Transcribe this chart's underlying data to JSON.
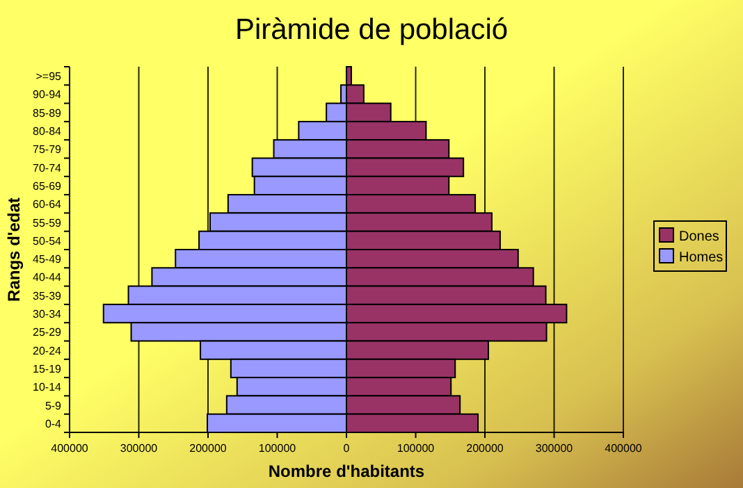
{
  "chart_data": {
    "type": "bar",
    "orientation": "horizontal",
    "title": "Piràmide de població",
    "xlabel": "Nombre d'habitants",
    "ylabel": "Rangs d'edat",
    "categories": [
      ">=95",
      "90-94",
      "85-89",
      "80-84",
      "75-79",
      "70-74",
      "65-69",
      "60-64",
      "55-59",
      "50-54",
      "45-49",
      "40-44",
      "35-39",
      "30-34",
      "25-29",
      "20-24",
      "15-19",
      "10-14",
      "5-9",
      "0-4"
    ],
    "series": [
      {
        "name": "Dones",
        "color": "#993366",
        "values": [
          7000,
          25000,
          64000,
          115000,
          148000,
          169000,
          148000,
          186000,
          210000,
          222000,
          248000,
          270000,
          288000,
          318000,
          289000,
          205000,
          157000,
          151000,
          164000,
          190000
        ]
      },
      {
        "name": "Homes",
        "color": "#9999ff",
        "values": [
          null,
          -8000,
          -29000,
          -69000,
          -105000,
          -136000,
          -133000,
          -171000,
          -197000,
          -213000,
          -247000,
          -281000,
          -315000,
          -351000,
          -311000,
          -211000,
          -167000,
          -158000,
          -173000,
          -201000
        ]
      }
    ],
    "xlim": [
      -400000,
      400000
    ],
    "xticks": [
      {
        "value": -400000,
        "label": "400000"
      },
      {
        "value": -300000,
        "label": "300000"
      },
      {
        "value": -200000,
        "label": "200000"
      },
      {
        "value": -100000,
        "label": "100000"
      },
      0,
      100000,
      200000,
      300000,
      400000
    ],
    "grid": "x",
    "legend": "right",
    "stacked": true
  }
}
